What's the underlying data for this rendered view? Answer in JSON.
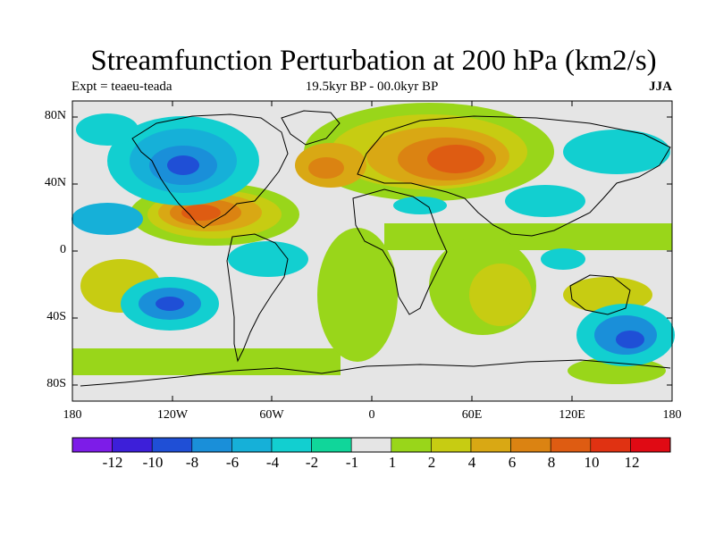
{
  "title": "Streamfunction Perturbation at 200 hPa (km2/s)",
  "left_subtitle": "Expt = teaeu-teada",
  "center_subtitle": "19.5kyr BP - 00.0kyr BP",
  "right_subtitle": "JJA",
  "lat_labels": [
    "80N",
    "40N",
    "0",
    "40S",
    "80S"
  ],
  "lon_labels": [
    "180",
    "120W",
    "60W",
    "0",
    "60E",
    "120E",
    "180"
  ],
  "colorbar": {
    "colors": [
      "#7d1ce8",
      "#3d1fd9",
      "#1f4fd6",
      "#1a8fd9",
      "#16b0d8",
      "#12cfd0",
      "#10d69a",
      "#e5e5e5",
      "#99d61a",
      "#c7cc12",
      "#d9a814",
      "#db8312",
      "#de5c12",
      "#e03212",
      "#e00a14"
    ],
    "labels": [
      "-12",
      "-10",
      "-8",
      "-6",
      "-4",
      "-2",
      "-1",
      "1",
      "2",
      "4",
      "6",
      "8",
      "10",
      "12"
    ]
  },
  "level_colors": {
    "n12": "#7d1ce8",
    "n10": "#3d1fd9",
    "n8": "#1f4fd6",
    "n6": "#1a8fd9",
    "n4": "#16b0d8",
    "n2": "#12cfd0",
    "n1": "#10d69a",
    "zero": "#e5e5e5",
    "p1": "#99d61a",
    "p2": "#c7cc12",
    "p4": "#d9a814",
    "p6": "#db8312",
    "p8": "#de5c12",
    "p10": "#e03212",
    "p12": "#e00a14"
  }
}
